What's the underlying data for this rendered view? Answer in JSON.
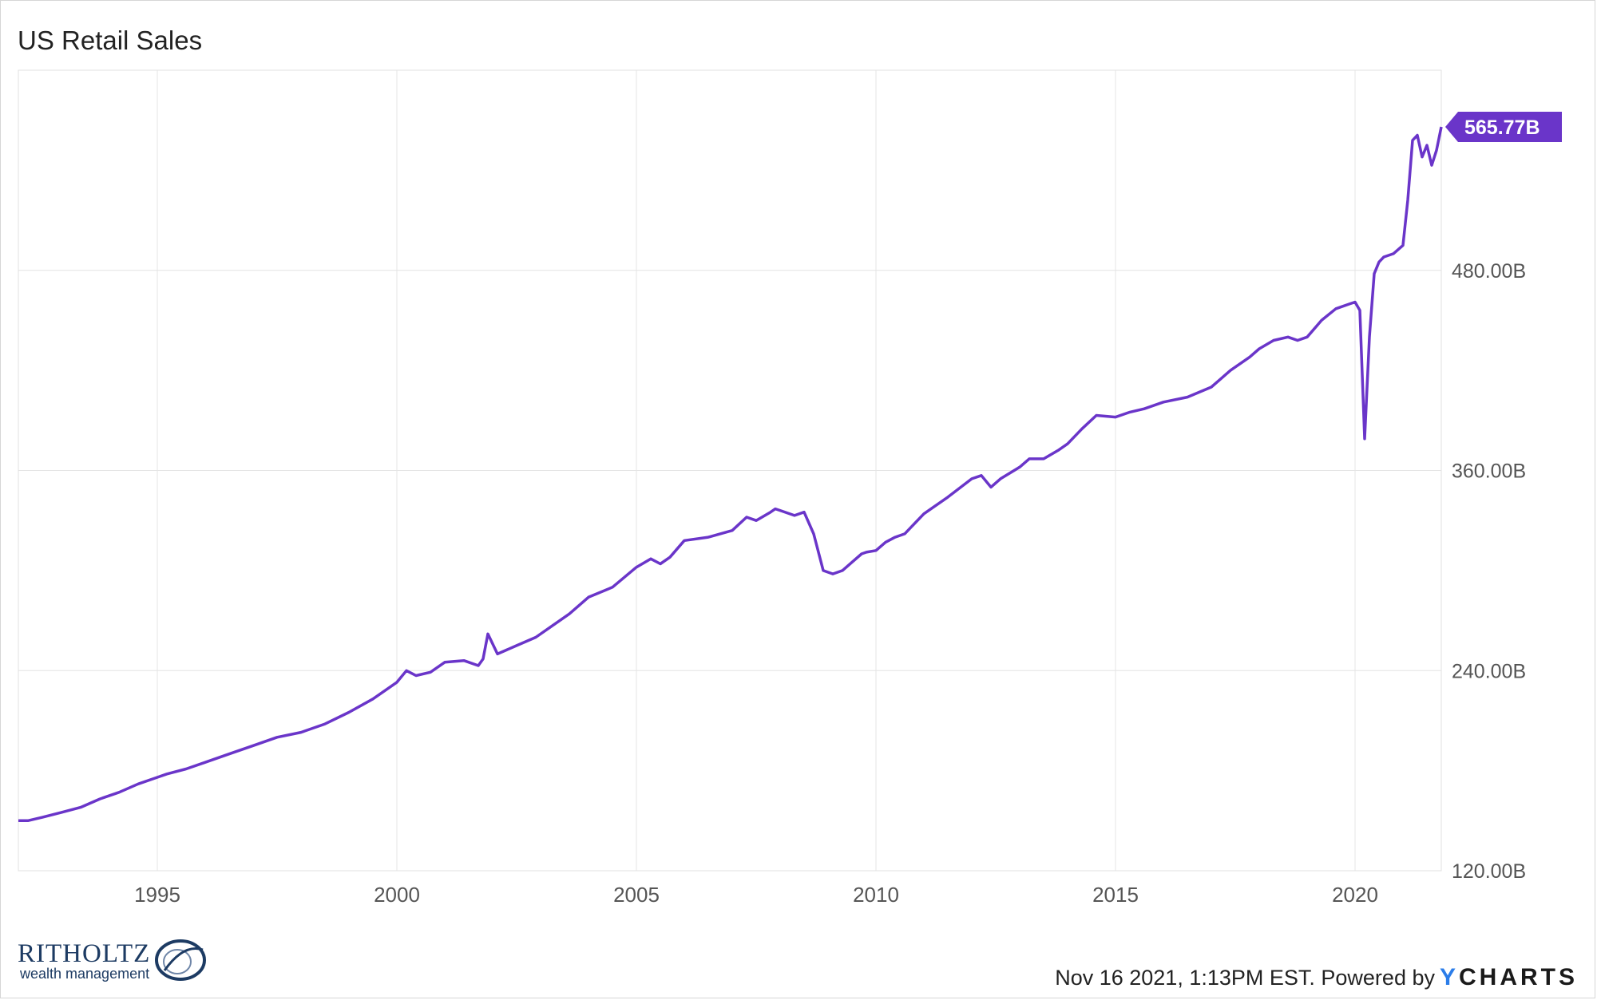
{
  "chart_data": {
    "type": "line",
    "title": "US Retail Sales",
    "x_range": [
      1992.1,
      2021.8
    ],
    "ylim": [
      120,
      600
    ],
    "x_ticks": [
      1995,
      2000,
      2005,
      2010,
      2015,
      2020
    ],
    "x_tick_labels": [
      "1995",
      "2000",
      "2005",
      "2010",
      "2015",
      "2020"
    ],
    "y_ticks": [
      120,
      240,
      360,
      480
    ],
    "y_tick_labels": [
      "120.00B",
      "240.00B",
      "360.00B",
      "480.00B"
    ],
    "grid": true,
    "line_color": "#6a35c9",
    "last_value_label": "565.77B",
    "series": [
      {
        "x": [
          1992.1,
          1992.3,
          1992.6,
          1993.0,
          1993.4,
          1993.8,
          1994.2,
          1994.6,
          1995.0,
          1995.2,
          1995.6,
          1996.0,
          1996.5,
          1997.0,
          1997.5,
          1998.0,
          1998.5,
          1999.0,
          1999.5,
          2000.0,
          2000.2,
          2000.4,
          2000.7,
          2001.0,
          2001.4,
          2001.7,
          2001.8,
          2001.9,
          2002.1,
          2002.5,
          2002.9,
          2003.2,
          2003.6,
          2004.0,
          2004.5,
          2005.0,
          2005.3,
          2005.5,
          2005.7,
          2006.0,
          2006.5,
          2007.0,
          2007.3,
          2007.5,
          2007.8,
          2007.9,
          2008.0,
          2008.3,
          2008.5,
          2008.7,
          2008.9,
          2009.1,
          2009.3,
          2009.5,
          2009.7,
          2009.8,
          2010.0,
          2010.2,
          2010.4,
          2010.6,
          2011.0,
          2011.5,
          2012.0,
          2012.2,
          2012.4,
          2012.6,
          2013.0,
          2013.2,
          2013.5,
          2013.8,
          2014.0,
          2014.3,
          2014.6,
          2015.0,
          2015.3,
          2015.6,
          2016.0,
          2016.5,
          2017.0,
          2017.4,
          2017.8,
          2018.0,
          2018.3,
          2018.6,
          2018.8,
          2019.0,
          2019.3,
          2019.6,
          2019.9,
          2020.0,
          2020.1,
          2020.2,
          2020.3,
          2020.4,
          2020.5,
          2020.6,
          2020.8,
          2021.0,
          2021.1,
          2021.2,
          2021.3,
          2021.4,
          2021.5,
          2021.6,
          2021.7,
          2021.8
        ],
        "values": [
          150,
          150,
          152,
          155,
          158,
          163,
          167,
          172,
          176,
          178,
          181,
          185,
          190,
          195,
          200,
          203,
          208,
          215,
          223,
          233,
          240,
          237,
          239,
          245,
          246,
          243,
          247,
          262,
          250,
          255,
          260,
          266,
          274,
          284,
          290,
          302,
          307,
          304,
          308,
          318,
          320,
          324,
          332,
          330,
          335,
          337,
          336,
          333,
          335,
          322,
          300,
          298,
          300,
          305,
          310,
          311,
          312,
          317,
          320,
          322,
          334,
          344,
          355,
          357,
          350,
          355,
          362,
          367,
          367,
          372,
          376,
          385,
          393,
          392,
          395,
          397,
          401,
          404,
          410,
          420,
          428,
          433,
          438,
          440,
          438,
          440,
          450,
          457,
          460,
          461,
          456,
          379,
          440,
          478,
          485,
          488,
          490,
          495,
          522,
          558,
          561,
          548,
          555,
          543,
          552,
          566
        ]
      }
    ]
  },
  "footer": {
    "logo_word": "RITHOLTZ",
    "logo_sub": "wealth management",
    "stamp": "Nov 16 2021, 1:13PM EST. Powered by",
    "brand_y": "Y",
    "brand_rest": "CHARTS"
  }
}
